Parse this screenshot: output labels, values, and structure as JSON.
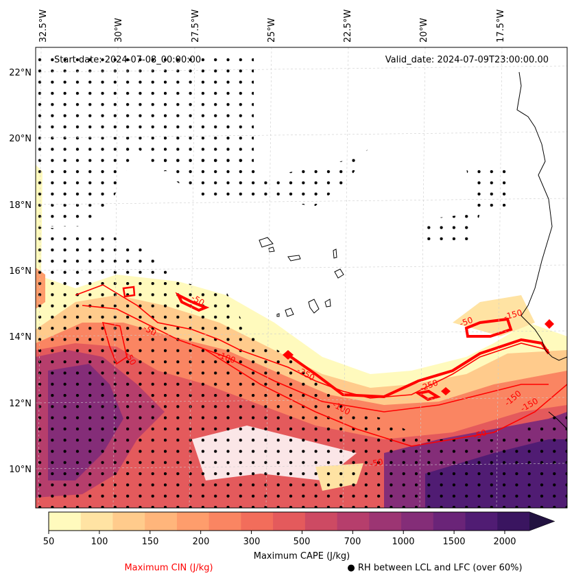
{
  "map": {
    "start_date": "Start date: 2024-07-08_00:00:00",
    "valid_date": "Valid_date: 2024-07-09T23:00:00.00",
    "lon_labels": [
      "32.5°W",
      "30°W",
      "27.5°W",
      "25°W",
      "22.5°W",
      "20°W",
      "17.5°W"
    ],
    "lat_labels": [
      "22°N",
      "20°N",
      "18°N",
      "16°N",
      "14°N",
      "12°N",
      "10°N"
    ],
    "contour_labels": [
      "-50",
      "-50",
      "-50",
      "-100",
      "-250",
      "-250",
      "-100",
      "-50",
      "-150",
      "-50",
      "-150",
      "-150",
      "-50"
    ]
  },
  "colorbar": {
    "tick_labels": [
      "50",
      "100",
      "150",
      "200",
      "300",
      "500",
      "700",
      "1000",
      "1500",
      "2000"
    ],
    "colors": [
      "#fffabd",
      "#ffe3a3",
      "#ffcb8c",
      "#ffb57b",
      "#fe9d6c",
      "#fa8562",
      "#f26d5b",
      "#e45a5c",
      "#cd4a63",
      "#b63e6c",
      "#9c3573",
      "#842d78",
      "#6a2478",
      "#501c73",
      "#3a1560",
      "#221240"
    ],
    "title": "Maximum CAPE (J/kg)"
  },
  "legend": {
    "cin_label": "Maximum CIN (J/kg)",
    "rh_label": "● RH between LCL and LFC (over 60%)",
    "cin_color": "#ff0000"
  }
}
